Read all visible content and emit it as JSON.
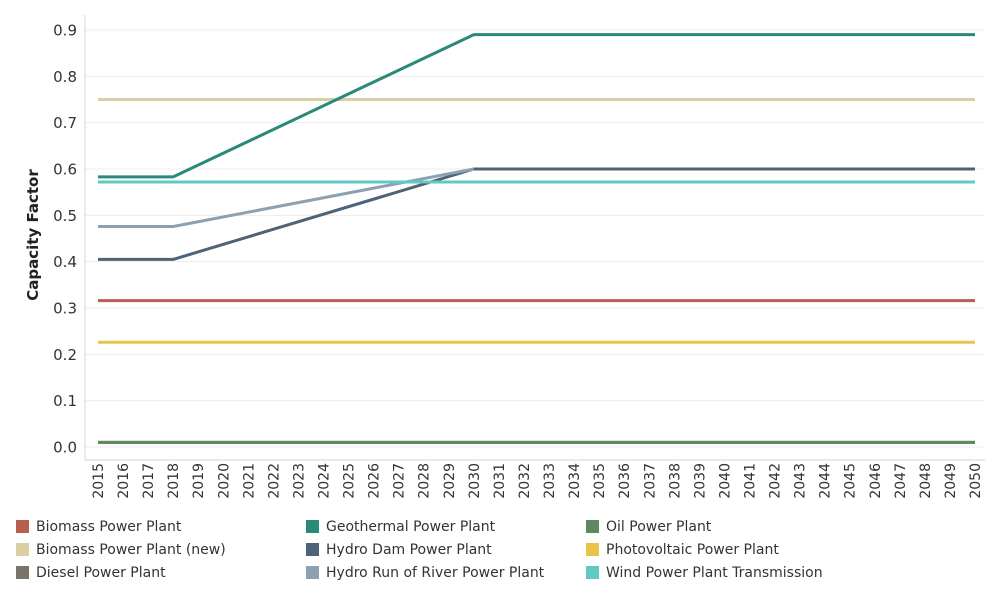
{
  "chart_data": {
    "type": "line",
    "title": "",
    "xlabel": "",
    "ylabel": "Capacity Factor",
    "ylim": [
      0,
      0.9
    ],
    "yticks": [
      "0.0",
      "0.1",
      "0.2",
      "0.3",
      "0.4",
      "0.5",
      "0.6",
      "0.7",
      "0.8",
      "0.9"
    ],
    "x": [
      2015,
      2016,
      2017,
      2018,
      2019,
      2020,
      2021,
      2022,
      2023,
      2024,
      2025,
      2026,
      2027,
      2028,
      2029,
      2030,
      2031,
      2032,
      2033,
      2034,
      2035,
      2036,
      2037,
      2038,
      2039,
      2040,
      2041,
      2042,
      2043,
      2044,
      2045,
      2046,
      2047,
      2048,
      2049,
      2050
    ],
    "grid": "horizontal",
    "legend_position": "bottom",
    "series": [
      {
        "name": "Biomass Power Plant",
        "color": "#b95f4f",
        "points": [
          [
            2015,
            0.316
          ],
          [
            2050,
            0.316
          ]
        ]
      },
      {
        "name": "Biomass Power Plant (new)",
        "color": "#d9cfa2",
        "points": [
          [
            2015,
            0.75
          ],
          [
            2050,
            0.75
          ]
        ]
      },
      {
        "name": "Diesel Power Plant",
        "color": "#79746a",
        "points": [
          [
            2015,
            0.01
          ],
          [
            2050,
            0.01
          ]
        ]
      },
      {
        "name": "Geothermal Power Plant",
        "color": "#2a8a7a",
        "points": [
          [
            2015,
            0.583
          ],
          [
            2018,
            0.583
          ],
          [
            2030,
            0.89
          ],
          [
            2050,
            0.89
          ]
        ]
      },
      {
        "name": "Hydro Dam Power Plant",
        "color": "#4e6378",
        "points": [
          [
            2015,
            0.405
          ],
          [
            2018,
            0.405
          ],
          [
            2030,
            0.6
          ],
          [
            2050,
            0.6
          ]
        ]
      },
      {
        "name": "Hydro Run of River Power Plant",
        "color": "#8ba1b2",
        "points": [
          [
            2015,
            0.476
          ],
          [
            2018,
            0.476
          ],
          [
            2030,
            0.6
          ]
        ]
      },
      {
        "name": "Oil Power Plant",
        "color": "#5f8760",
        "points": [
          [
            2015,
            0.01
          ],
          [
            2050,
            0.01
          ]
        ]
      },
      {
        "name": "Photovoltaic Power Plant",
        "color": "#e9c44a",
        "points": [
          [
            2015,
            0.226
          ],
          [
            2050,
            0.226
          ]
        ]
      },
      {
        "name": "Wind Power Plant Transmission",
        "color": "#61c9c3",
        "points": [
          [
            2015,
            0.572
          ],
          [
            2050,
            0.572
          ]
        ]
      }
    ]
  },
  "legend": {
    "items": [
      {
        "label": "Biomass Power Plant",
        "color": "#b95f4f"
      },
      {
        "label": "Biomass Power Plant (new)",
        "color": "#d9cfa2"
      },
      {
        "label": "Diesel Power Plant",
        "color": "#79746a"
      },
      {
        "label": "Geothermal Power Plant",
        "color": "#2a8a7a"
      },
      {
        "label": "Hydro Dam Power Plant",
        "color": "#4e6378"
      },
      {
        "label": "Hydro Run of River Power Plant",
        "color": "#8ba1b2"
      },
      {
        "label": "Oil Power Plant",
        "color": "#5f8760"
      },
      {
        "label": "Photovoltaic Power Plant",
        "color": "#e9c44a"
      },
      {
        "label": "Wind Power Plant Transmission",
        "color": "#61c9c3"
      }
    ]
  }
}
